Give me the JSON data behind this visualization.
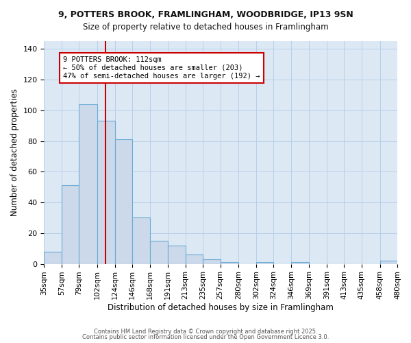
{
  "title1": "9, POTTERS BROOK, FRAMLINGHAM, WOODBRIDGE, IP13 9SN",
  "title2": "Size of property relative to detached houses in Framlingham",
  "xlabel": "Distribution of detached houses by size in Framlingham",
  "ylabel": "Number of detached properties",
  "footer1": "Contains HM Land Registry data © Crown copyright and database right 2025.",
  "footer2": "Contains public sector information licensed under the Open Government Licence 3.0.",
  "bins": [
    35,
    57,
    79,
    102,
    124,
    146,
    168,
    191,
    213,
    235,
    257,
    280,
    302,
    324,
    346,
    369,
    391,
    413,
    435,
    458,
    480
  ],
  "counts": [
    8,
    51,
    104,
    93,
    81,
    30,
    15,
    12,
    6,
    3,
    1,
    0,
    1,
    0,
    1,
    0,
    0,
    0,
    0,
    2
  ],
  "bar_facecolor": "#ccd9ea",
  "bar_edgecolor": "#6aaad4",
  "property_size": 112,
  "vline_color": "#cc0000",
  "annotation_line1": "9 POTTERS BROOK: 112sqm",
  "annotation_line2": "← 50% of detached houses are smaller (203)",
  "annotation_line3": "47% of semi-detached houses are larger (192) →",
  "annotation_box_edgecolor": "#cc0000",
  "annotation_box_facecolor": "#ffffff",
  "ylim": [
    0,
    145
  ],
  "yticks": [
    0,
    20,
    40,
    60,
    80,
    100,
    120,
    140
  ],
  "fig_bg_color": "#ffffff",
  "plot_bg_color": "#dce9f5",
  "grid_color": "#b8cfe8",
  "title_area_color": "#ffffff"
}
